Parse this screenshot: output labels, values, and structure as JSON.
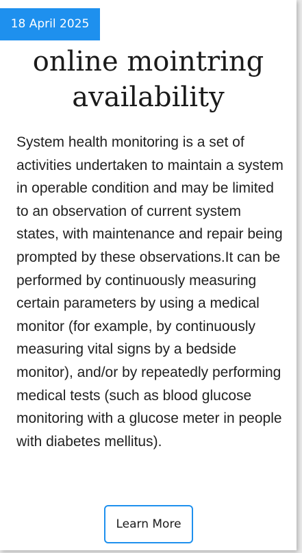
{
  "card": {
    "date": "18 April 2025",
    "title_line1": "online mointring",
    "title_line2": "availability",
    "description": "System health monitoring is a set of activities undertaken to maintain a system in operable condition and may be limited to an observation of current system states, with maintenance and repair being prompted by these observations.It can be performed by continuously measuring certain parameters by using a medical monitor (for example, by continuously measuring vital signs by a bedside monitor), and/or by repeatedly performing medical tests (such as blood glucose monitoring with a glucose meter in people with diabetes mellitus).",
    "button_label": "Learn More"
  },
  "colors": {
    "accent": "#1e90ee",
    "text": "#1a1a1a",
    "background": "#ffffff"
  }
}
